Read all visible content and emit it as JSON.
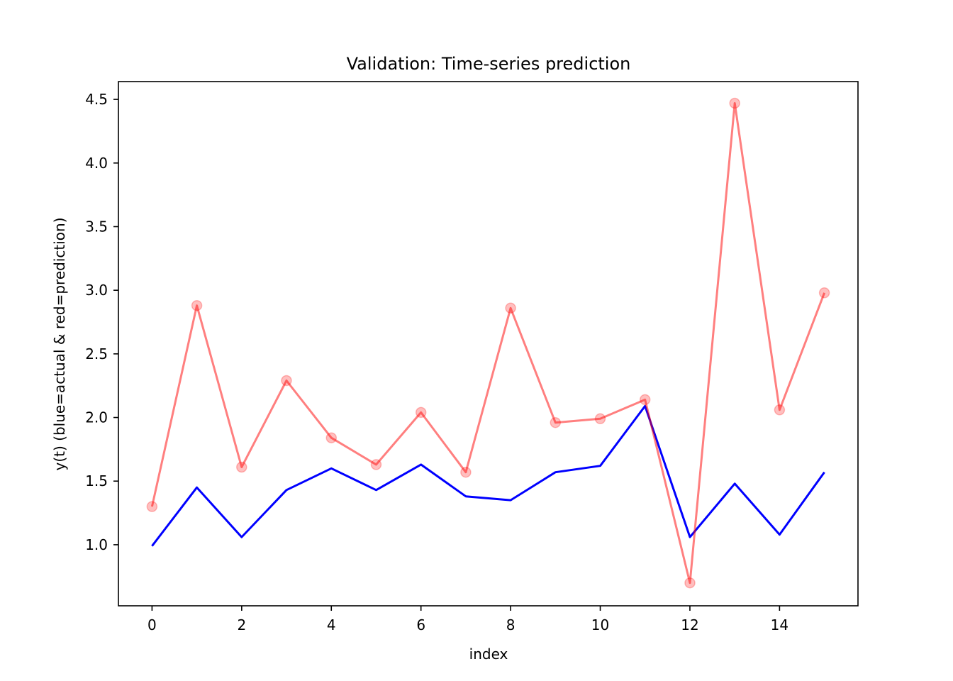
{
  "chart_data": {
    "type": "line",
    "title": "Validation: Time-series prediction",
    "xlabel": "index",
    "ylabel": "y(t) (blue=actual & red=prediction)",
    "xlim": [
      -0.75,
      15.75
    ],
    "ylim": [
      0.52,
      4.64
    ],
    "xticks": [
      0,
      2,
      4,
      6,
      8,
      10,
      12,
      14
    ],
    "xtick_labels": [
      "0",
      "2",
      "4",
      "6",
      "8",
      "10",
      "12",
      "14"
    ],
    "yticks": [
      1.0,
      1.5,
      2.0,
      2.5,
      3.0,
      3.5,
      4.0,
      4.5
    ],
    "ytick_labels": [
      "1.0",
      "1.5",
      "2.0",
      "2.5",
      "3.0",
      "3.5",
      "4.0",
      "4.5"
    ],
    "grid": false,
    "x": [
      0,
      1,
      2,
      3,
      4,
      5,
      6,
      7,
      8,
      9,
      10,
      11,
      12,
      13,
      14,
      15
    ],
    "series": [
      {
        "key": "actual",
        "color": "#0000ff",
        "markers": false,
        "values": [
          0.99,
          1.45,
          1.06,
          1.43,
          1.6,
          1.43,
          1.63,
          1.38,
          1.35,
          1.57,
          1.62,
          2.09,
          1.06,
          1.48,
          1.08,
          1.57
        ]
      },
      {
        "key": "prediction",
        "color": "#ff0000",
        "markers": true,
        "values": [
          1.3,
          2.88,
          1.61,
          2.29,
          1.84,
          1.63,
          2.04,
          1.57,
          2.86,
          1.96,
          1.99,
          2.14,
          0.7,
          4.47,
          2.06,
          2.98
        ]
      }
    ]
  }
}
